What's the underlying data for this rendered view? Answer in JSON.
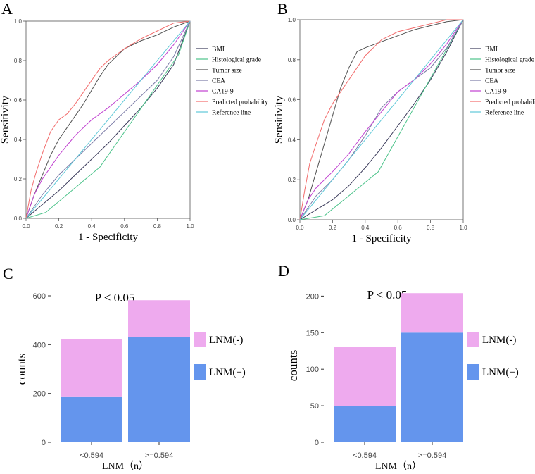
{
  "chart_data": [
    {
      "panel": "A",
      "type": "line",
      "xlabel": "1 - Specificity",
      "ylabel": "Sensitivity",
      "xlim": [
        0,
        1
      ],
      "ylim": [
        0,
        1
      ],
      "ticks": [
        "0.0",
        "0.2",
        "0.4",
        "0.6",
        "0.8",
        "1.0"
      ],
      "tick_values": [
        0,
        0.2,
        0.4,
        0.6,
        0.8,
        1.0
      ],
      "legend_position": "right",
      "series": [
        {
          "name": "BMI",
          "color": "#3a3a5a",
          "x": [
            0,
            0.1,
            0.2,
            0.3,
            0.4,
            0.5,
            0.6,
            0.7,
            0.8,
            0.9,
            1.0
          ],
          "y": [
            0,
            0.07,
            0.14,
            0.22,
            0.3,
            0.38,
            0.47,
            0.56,
            0.66,
            0.78,
            1.0
          ]
        },
        {
          "name": "Histological grade",
          "color": "#4cc38a",
          "x": [
            0,
            0.12,
            0.45,
            0.93,
            1.0
          ],
          "y": [
            0,
            0.03,
            0.26,
            0.83,
            1.0
          ]
        },
        {
          "name": "Tumor size",
          "color": "#505050",
          "x": [
            0,
            0.05,
            0.1,
            0.15,
            0.2,
            0.25,
            0.3,
            0.35,
            0.4,
            0.45,
            0.5,
            0.55,
            0.6,
            0.7,
            0.8,
            0.9,
            1.0
          ],
          "y": [
            0,
            0.12,
            0.22,
            0.32,
            0.4,
            0.46,
            0.52,
            0.58,
            0.65,
            0.72,
            0.78,
            0.82,
            0.86,
            0.9,
            0.93,
            0.97,
            1.0
          ]
        },
        {
          "name": "CEA",
          "color": "#7a7aa6",
          "x": [
            0,
            0.1,
            0.2,
            0.3,
            0.4,
            0.5,
            0.6,
            0.7,
            0.8,
            0.9,
            1.0
          ],
          "y": [
            0,
            0.12,
            0.22,
            0.3,
            0.38,
            0.46,
            0.54,
            0.62,
            0.7,
            0.82,
            1.0
          ]
        },
        {
          "name": "CA19-9",
          "color": "#c040d0",
          "x": [
            0,
            0.05,
            0.1,
            0.15,
            0.2,
            0.3,
            0.4,
            0.5,
            0.6,
            0.7,
            0.8,
            0.9,
            1.0
          ],
          "y": [
            0,
            0.12,
            0.2,
            0.26,
            0.32,
            0.42,
            0.5,
            0.56,
            0.63,
            0.7,
            0.78,
            0.88,
            1.0
          ]
        },
        {
          "name": "Predicted probability",
          "color": "#f26b6b",
          "x": [
            0,
            0.03,
            0.06,
            0.1,
            0.15,
            0.2,
            0.25,
            0.3,
            0.35,
            0.4,
            0.45,
            0.5,
            0.55,
            0.6,
            0.7,
            0.8,
            0.9,
            1.0
          ],
          "y": [
            0,
            0.14,
            0.23,
            0.33,
            0.44,
            0.5,
            0.53,
            0.58,
            0.64,
            0.7,
            0.76,
            0.8,
            0.83,
            0.86,
            0.91,
            0.95,
            0.99,
            1.0
          ]
        },
        {
          "name": "Reference line",
          "color": "#5fc8d8",
          "x": [
            0,
            1
          ],
          "y": [
            0,
            1
          ]
        }
      ]
    },
    {
      "panel": "B",
      "type": "line",
      "xlabel": "1 - Specificity",
      "ylabel": "Sensitivity",
      "xlim": [
        0,
        1
      ],
      "ylim": [
        0,
        1
      ],
      "ticks": [
        "0.0",
        "0.2",
        "0.4",
        "0.6",
        "0.8",
        "1.0"
      ],
      "tick_values": [
        0,
        0.2,
        0.4,
        0.6,
        0.8,
        1.0
      ],
      "legend_position": "right",
      "series": [
        {
          "name": "BMI",
          "color": "#3a3a5a",
          "x": [
            0,
            0.1,
            0.2,
            0.3,
            0.4,
            0.5,
            0.6,
            0.7,
            0.8,
            0.9,
            1.0
          ],
          "y": [
            0,
            0.05,
            0.1,
            0.17,
            0.26,
            0.36,
            0.47,
            0.58,
            0.7,
            0.84,
            1.0
          ]
        },
        {
          "name": "Histological grade",
          "color": "#4cc38a",
          "x": [
            0,
            0.15,
            0.48,
            1.0
          ],
          "y": [
            0,
            0.02,
            0.24,
            1.0
          ]
        },
        {
          "name": "Tumor size",
          "color": "#505050",
          "x": [
            0,
            0.05,
            0.1,
            0.15,
            0.2,
            0.25,
            0.3,
            0.35,
            0.4,
            0.5,
            0.6,
            0.7,
            0.8,
            0.9,
            1.0
          ],
          "y": [
            0,
            0.1,
            0.24,
            0.38,
            0.52,
            0.66,
            0.76,
            0.84,
            0.86,
            0.89,
            0.92,
            0.95,
            0.97,
            0.99,
            1.0
          ]
        },
        {
          "name": "CEA",
          "color": "#7a7aa6",
          "x": [
            0,
            0.1,
            0.2,
            0.3,
            0.4,
            0.5,
            0.6,
            0.7,
            0.8,
            0.9,
            1.0
          ],
          "y": [
            0,
            0.12,
            0.2,
            0.3,
            0.42,
            0.56,
            0.64,
            0.7,
            0.76,
            0.86,
            1.0
          ]
        },
        {
          "name": "CA19-9",
          "color": "#c040d0",
          "x": [
            0,
            0.05,
            0.1,
            0.15,
            0.2,
            0.3,
            0.4,
            0.5,
            0.6,
            0.7,
            0.8,
            0.9,
            1.0
          ],
          "y": [
            0,
            0.1,
            0.16,
            0.2,
            0.24,
            0.33,
            0.44,
            0.54,
            0.64,
            0.7,
            0.78,
            0.88,
            1.0
          ]
        },
        {
          "name": "Predicted probability",
          "color": "#f26b6b",
          "x": [
            0,
            0.03,
            0.06,
            0.1,
            0.15,
            0.2,
            0.25,
            0.3,
            0.35,
            0.4,
            0.45,
            0.5,
            0.55,
            0.6,
            0.7,
            0.8,
            0.9,
            1.0
          ],
          "y": [
            0,
            0.15,
            0.28,
            0.38,
            0.5,
            0.58,
            0.64,
            0.7,
            0.76,
            0.82,
            0.86,
            0.9,
            0.92,
            0.94,
            0.96,
            0.98,
            1.0,
            1.0
          ]
        },
        {
          "name": "Reference line",
          "color": "#5fc8d8",
          "x": [
            0,
            1
          ],
          "y": [
            0,
            1
          ]
        }
      ]
    },
    {
      "panel": "C",
      "type": "bar",
      "stacked": true,
      "title": "P < 0.05",
      "xlabel": "LNM（n）",
      "ylabel": "counts",
      "categories": [
        "<0.594",
        ">=0.594"
      ],
      "ylim": [
        0,
        600
      ],
      "yticks": [
        0,
        200,
        400,
        600
      ],
      "series": [
        {
          "name": "LNM(+)",
          "color": "#6495ed",
          "values": [
            188,
            432
          ]
        },
        {
          "name": "LNM(-)",
          "color": "#eeaaee",
          "values": [
            234,
            150
          ]
        }
      ],
      "legend_order": [
        "LNM(-)",
        "LNM(+)"
      ],
      "legend_position": "right"
    },
    {
      "panel": "D",
      "type": "bar",
      "stacked": true,
      "title": "P < 0.05",
      "xlabel": "LNM（n）",
      "ylabel": "counts",
      "categories": [
        "<0.594",
        ">=0.594"
      ],
      "ylim": [
        0,
        210
      ],
      "yticks": [
        0,
        50,
        100,
        150,
        200
      ],
      "series": [
        {
          "name": "LNM(+)",
          "color": "#6495ed",
          "values": [
            50,
            150
          ]
        },
        {
          "name": "LNM(-)",
          "color": "#eeaaee",
          "values": [
            81,
            54
          ]
        }
      ],
      "legend_order": [
        "LNM(-)",
        "LNM(+)"
      ],
      "legend_position": "right"
    }
  ]
}
